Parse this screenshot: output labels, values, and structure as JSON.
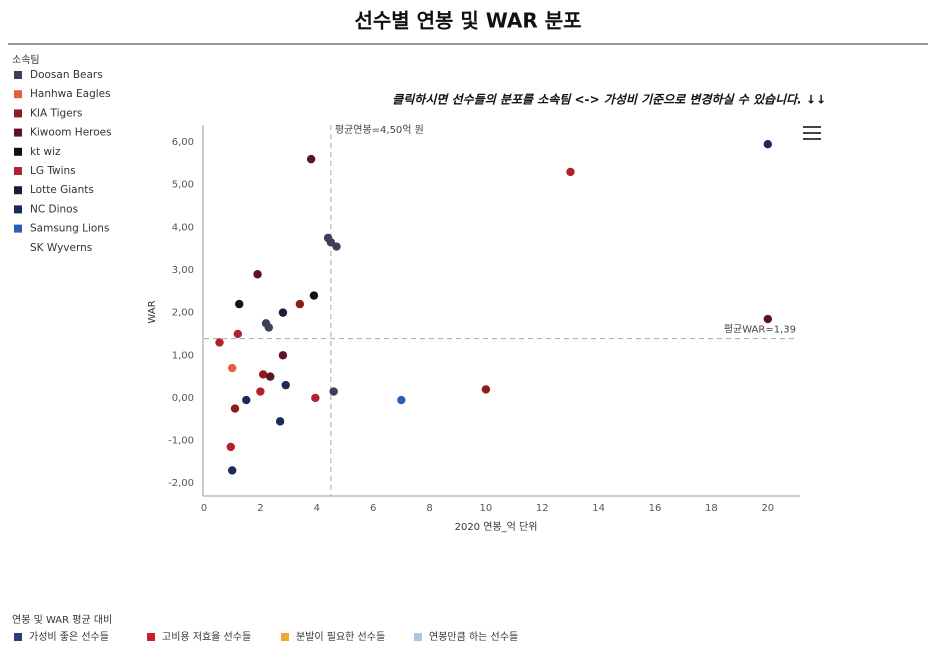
{
  "chart_data": {
    "type": "scatter",
    "title": "선수별 연봉 및 WAR 분포",
    "instruction": "클릭하시면 선수들의 분포를 소속팀 <-> 가성비 기준으로 변경하실 수 있습니다. ↓↓",
    "x_label": "2020 연봉_억 단위",
    "y_label": "WAR",
    "legend_title": "소속팀",
    "grid": false,
    "xlim": [
      0,
      21
    ],
    "ylim": [
      -2.3,
      6.4
    ],
    "xticks": [
      0,
      2,
      4,
      6,
      8,
      10,
      12,
      14,
      16,
      18,
      20
    ],
    "yticks": [
      {
        "value": -2,
        "label": "-2,00"
      },
      {
        "value": -1,
        "label": "-1,00"
      },
      {
        "value": 0,
        "label": "0,00"
      },
      {
        "value": 1,
        "label": "1,00"
      },
      {
        "value": 2,
        "label": "2,00"
      },
      {
        "value": 3,
        "label": "3,00"
      },
      {
        "value": 4,
        "label": "4,00"
      },
      {
        "value": 5,
        "label": "5,00"
      },
      {
        "value": 6,
        "label": "6,00"
      }
    ],
    "mean_x": {
      "value": 4.5,
      "label": "평균연봉=4,50억 원"
    },
    "mean_y": {
      "value": 1.39,
      "label": "평균WAR=1,39"
    },
    "series": [
      {
        "name": "Doosan Bears",
        "color": "#3d4157",
        "x": [
          4.4,
          4.5,
          4.7,
          2.2,
          2.3,
          4.6
        ],
        "values": [
          3.75,
          3.65,
          3.55,
          1.75,
          1.65,
          0.15
        ]
      },
      {
        "name": "Hanhwa Eagles",
        "color": "#e8603a",
        "x": [
          1.0
        ],
        "values": [
          0.7
        ]
      },
      {
        "name": "KIA Tigers",
        "color": "#8e1b1e",
        "x": [
          3.4,
          2.1,
          10,
          1.1
        ],
        "values": [
          2.2,
          0.55,
          0.2,
          -0.25
        ]
      },
      {
        "name": "Kiwoom Heroes",
        "color": "#5b1424",
        "x": [
          3.8,
          1.9,
          20,
          2.8,
          2.35
        ],
        "values": [
          5.6,
          2.9,
          1.85,
          1.0,
          0.5
        ]
      },
      {
        "name": "kt wiz",
        "color": "#111111",
        "x": [
          3.9,
          1.25
        ],
        "values": [
          2.4,
          2.2
        ]
      },
      {
        "name": "LG Twins",
        "color": "#b0222e",
        "x": [
          13,
          1.2,
          0.55,
          2.0,
          3.95,
          0.95
        ],
        "values": [
          5.3,
          1.5,
          1.3,
          0.15,
          0.0,
          -1.15
        ]
      },
      {
        "name": "Lotte Giants",
        "color": "#1c1f33",
        "x": [
          2.8
        ],
        "values": [
          2.0
        ]
      },
      {
        "name": "NC Dinos",
        "color": "#1f2a5c",
        "x": [
          20,
          2.9,
          1.5,
          2.7,
          1.0
        ],
        "values": [
          5.95,
          0.3,
          -0.05,
          -0.55,
          -1.7
        ]
      },
      {
        "name": "Samsung Lions",
        "color": "#2e5fae",
        "x": [
          7
        ],
        "values": [
          -0.05
        ]
      },
      {
        "name": "SK Wyverns",
        "color": "#ffffff",
        "x": [],
        "values": []
      }
    ]
  },
  "quadrant_legend": {
    "title": "연봉 및 WAR 평균 대비",
    "items": [
      {
        "name": "가성비 좋은 선수들",
        "color": "#2a3f7a"
      },
      {
        "name": "고비용 저효율 선수들",
        "color": "#c8202a"
      },
      {
        "name": "분발이 필요한 선수들",
        "color": "#f0a830"
      },
      {
        "name": "연봉만큼 하는 선수들",
        "color": "#a8c8e8"
      }
    ]
  }
}
